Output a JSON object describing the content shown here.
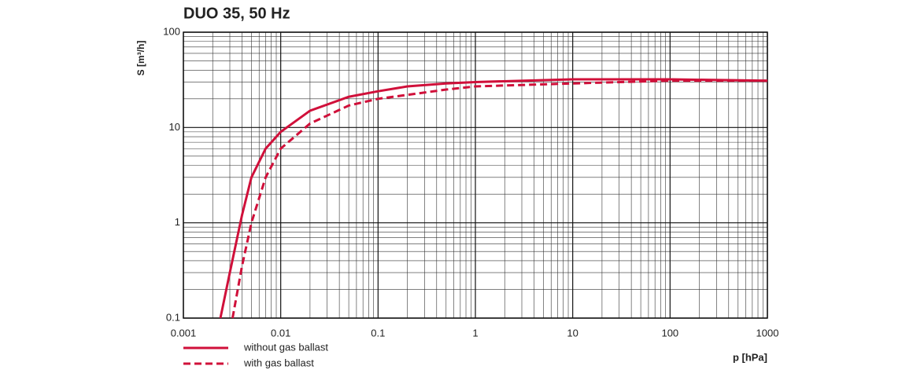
{
  "chart_data": {
    "type": "line",
    "title": "DUO 35, 50 Hz",
    "xlabel": "p [hPa]",
    "ylabel": "S [m³/h]",
    "xscale": "log",
    "yscale": "log",
    "grid": true,
    "minor_grid": true,
    "legend": "bottom-left",
    "xlim": [
      0.001,
      1000
    ],
    "xticks": [
      0.001,
      0.01,
      0.1,
      1,
      10,
      100,
      1000
    ],
    "ylim": [
      0.1,
      100
    ],
    "yticks": [
      0.1,
      1,
      10,
      100
    ],
    "series": [
      {
        "name": "without gas ballast",
        "color": "#d0103a",
        "style": "solid",
        "x": [
          0.0024,
          0.003,
          0.004,
          0.005,
          0.007,
          0.01,
          0.02,
          0.05,
          0.1,
          0.2,
          0.5,
          1,
          10,
          100,
          1000
        ],
        "values": [
          0.1,
          0.3,
          1.2,
          3,
          6,
          9,
          15,
          21,
          24,
          27,
          29,
          30,
          32,
          32,
          31
        ]
      },
      {
        "name": "with gas ballast",
        "color": "#d0103a",
        "style": "dashed",
        "x": [
          0.0032,
          0.004,
          0.005,
          0.007,
          0.01,
          0.02,
          0.05,
          0.1,
          0.2,
          0.5,
          1,
          10,
          100,
          1000
        ],
        "values": [
          0.1,
          0.35,
          1,
          3,
          6,
          11,
          17,
          20,
          22,
          25,
          27,
          29,
          31,
          31
        ]
      }
    ]
  }
}
